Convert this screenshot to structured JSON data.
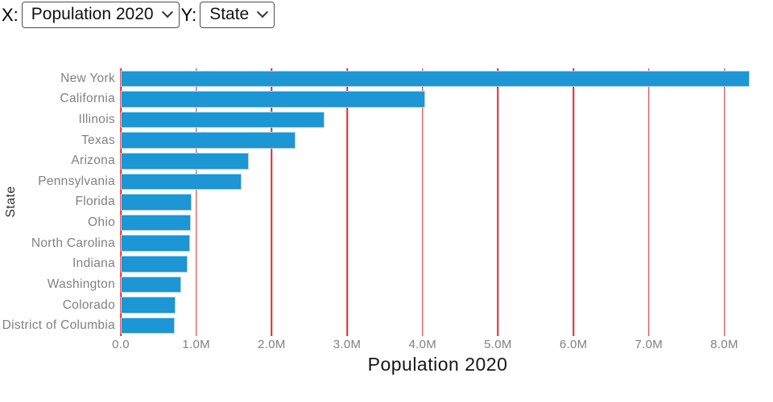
{
  "controls": {
    "x_label": "X:",
    "x_value": "Population 2020",
    "y_label": "Y:",
    "y_value": "State"
  },
  "chart_data": {
    "type": "bar",
    "orientation": "horizontal",
    "title": "",
    "xlabel": "Population 2020",
    "ylabel": "State",
    "categories": [
      "New York",
      "California",
      "Illinois",
      "Texas",
      "Arizona",
      "Pennsylvania",
      "Florida",
      "Ohio",
      "North Carolina",
      "Indiana",
      "Washington",
      "Colorado",
      "District of Columbia"
    ],
    "values": [
      8.34,
      4.03,
      2.7,
      2.32,
      1.7,
      1.6,
      0.94,
      0.93,
      0.92,
      0.89,
      0.8,
      0.73,
      0.72
    ],
    "unit": "millions",
    "xlim": [
      0,
      8.4
    ],
    "x_tick_values": [
      0,
      1,
      2,
      3,
      4,
      5,
      6,
      7,
      8
    ],
    "x_tick_labels": [
      "0.0",
      "1.0M",
      "2.0M",
      "3.0M",
      "4.0M",
      "5.0M",
      "6.0M",
      "7.0M",
      "8.0M"
    ],
    "grid": "vertical",
    "legend": "none",
    "colors": {
      "bar": "#1c96d4",
      "bar_stroke": "#a2d6ef",
      "gridline": "#ee2222",
      "label": "#818181",
      "axis_title": "#161616"
    }
  }
}
